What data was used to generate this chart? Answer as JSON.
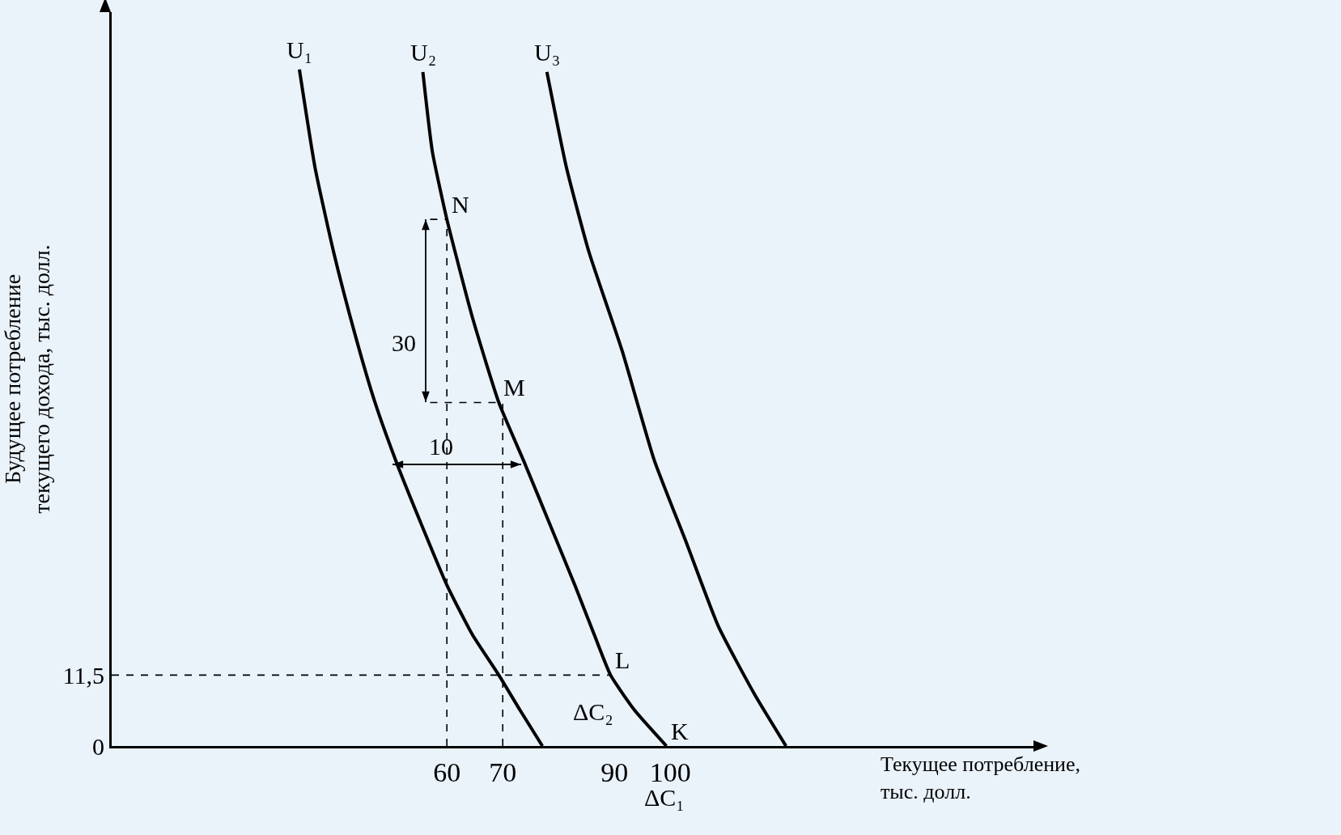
{
  "chart_data": {
    "type": "line",
    "xlabel": "Текущее потребление, тыс. долл.",
    "ylabel": "Будущее потребление текущего дохода, тыс. долл.",
    "xlim": [
      0,
      165
    ],
    "ylim": [
      0,
      119
    ],
    "xticks": [
      60,
      70,
      90,
      100
    ],
    "yticks": [
      0,
      {
        "value": 11.5,
        "label": "11,5"
      }
    ],
    "grid": false,
    "legend": false,
    "series": [
      {
        "name": "U₁",
        "color": "#000000",
        "line_style": "solid",
        "x": [
          33.6,
          36.4,
          39.7,
          43.6,
          47.1,
          51.1,
          55,
          60,
          64.6,
          69.3,
          73.1,
          77.1
        ],
        "values": [
          109.7,
          93.8,
          80.2,
          66.6,
          55.8,
          45.7,
          36.9,
          26.1,
          18,
          11.5,
          5.8,
          0
        ]
      },
      {
        "name": "U₂",
        "color": "#000000",
        "line_style": "solid",
        "x": [
          55.7,
          57.4,
          60,
          64.6,
          69.3,
          74,
          78.6,
          82.9,
          86.4,
          89.3,
          93.6,
          99.3
        ],
        "values": [
          109.3,
          96.4,
          85.4,
          69.4,
          55.7,
          45.7,
          35.6,
          26.1,
          18,
          11.5,
          5.8,
          0
        ]
      },
      {
        "name": "U₃",
        "color": "#000000",
        "line_style": "solid",
        "x": [
          77.9,
          81.4,
          85.4,
          91.4,
          97.1,
          102.9,
          108.6,
          115,
          120.7
        ],
        "values": [
          109.3,
          93.8,
          80.2,
          64,
          46.4,
          32.9,
          19.4,
          8.5,
          0
        ]
      },
      {
        "type": "line",
        "color": "#000000",
        "line_style": "dashed",
        "x": [
          60,
          60
        ],
        "values": [
          0,
          85.4
        ]
      },
      {
        "type": "line",
        "color": "#000000",
        "line_style": "dashed",
        "x": [
          70,
          70
        ],
        "values": [
          0,
          55.7
        ]
      },
      {
        "type": "line",
        "color": "#000000",
        "line_style": "dashed",
        "x": [
          0,
          89.3
        ],
        "values": [
          11.5,
          11.5
        ]
      },
      {
        "type": "line",
        "color": "#000000",
        "line_style": "dashed",
        "x": [
          57,
          69.3
        ],
        "values": [
          55.7,
          55.7
        ]
      },
      {
        "type": "line",
        "color": "#000000",
        "line_style": "dashed",
        "x": [
          57,
          60
        ],
        "values": [
          85.4,
          85.4
        ]
      }
    ],
    "annotations": [
      {
        "text": "N",
        "x": 60,
        "y": 85.4
      },
      {
        "text": "M",
        "x": 69.3,
        "y": 55.7
      },
      {
        "text": "L",
        "x": 89.3,
        "y": 11.5
      },
      {
        "text": "K",
        "x": 99.3,
        "y": 0
      },
      "30",
      "10",
      "ΔC₂",
      "ΔC₁"
    ]
  }
}
